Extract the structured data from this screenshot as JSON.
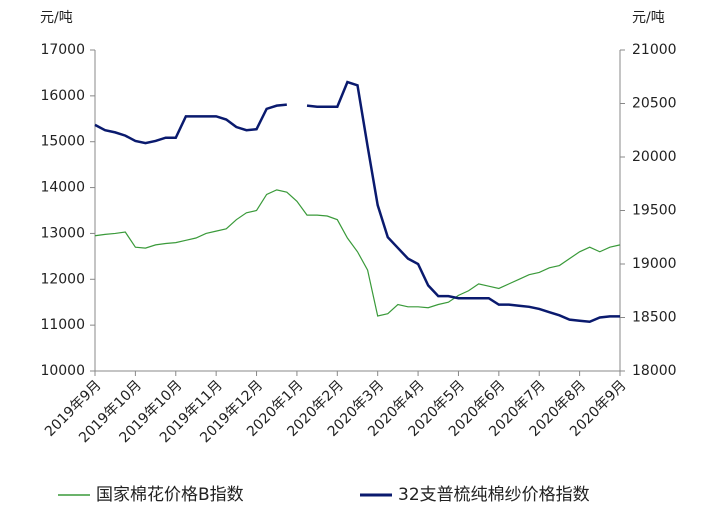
{
  "chart_data": {
    "type": "line",
    "y_label": "元/吨",
    "y2_label": "元/吨",
    "categories": [
      "2019年9月",
      null,
      null,
      null,
      "2019年10月",
      null,
      null,
      null,
      "2019年10月",
      null,
      null,
      null,
      "2019年11月",
      null,
      null,
      null,
      "2019年12月",
      null,
      null,
      null,
      "2020年1月",
      null,
      null,
      null,
      "2020年2月",
      null,
      null,
      null,
      "2020年3月",
      null,
      null,
      null,
      "2020年4月",
      null,
      null,
      null,
      "2020年5月",
      null,
      null,
      null,
      "2020年6月",
      null,
      null,
      null,
      "2020年7月",
      null,
      null,
      null,
      "2020年8月",
      null,
      null,
      null,
      "2020年9月"
    ],
    "series": [
      {
        "name": "国家棉花价格B指数",
        "color": "#3a9a3a",
        "values": [
          12950,
          12980,
          13000,
          13030,
          12700,
          12680,
          12750,
          12780,
          12800,
          12850,
          12900,
          13000,
          13050,
          13100,
          13300,
          13450,
          13500,
          13850,
          13950,
          13900,
          13700,
          13400,
          13400,
          13380,
          13300,
          12900,
          12600,
          12200,
          11200,
          11250,
          11450,
          11400,
          11400,
          11380,
          11450,
          11500,
          11650,
          11750,
          11900,
          11850,
          11800,
          11900,
          12000,
          12100,
          12150,
          12250,
          12300,
          12450,
          12600,
          12700,
          12600,
          12700,
          12750
        ]
      },
      {
        "name": "32支普梳纯棉纱价格指数",
        "color": "#0a1a6e",
        "axis": "y2",
        "values": [
          20300,
          20250,
          20230,
          20200,
          20150,
          20130,
          20150,
          20180,
          20180,
          20380,
          20380,
          20380,
          20380,
          20350,
          20280,
          20250,
          20260,
          20450,
          20480,
          20490,
          null,
          20480,
          20470,
          20470,
          20470,
          20700,
          20670,
          20100,
          19550,
          19250,
          19150,
          19050,
          19000,
          18800,
          18700,
          18700,
          18680,
          18680,
          18680,
          18680,
          18620,
          18620,
          18610,
          18600,
          18580,
          18550,
          18520,
          18480,
          18470,
          18460,
          18500,
          18510,
          18510
        ]
      }
    ],
    "ylim": [
      10000,
      17000
    ],
    "yticks": [
      10000,
      11000,
      12000,
      13000,
      14000,
      15000,
      16000,
      17000
    ],
    "y2lim": [
      18000,
      21000
    ],
    "y2ticks": [
      18000,
      18500,
      19000,
      19500,
      20000,
      20500,
      21000
    ],
    "grid": false
  }
}
